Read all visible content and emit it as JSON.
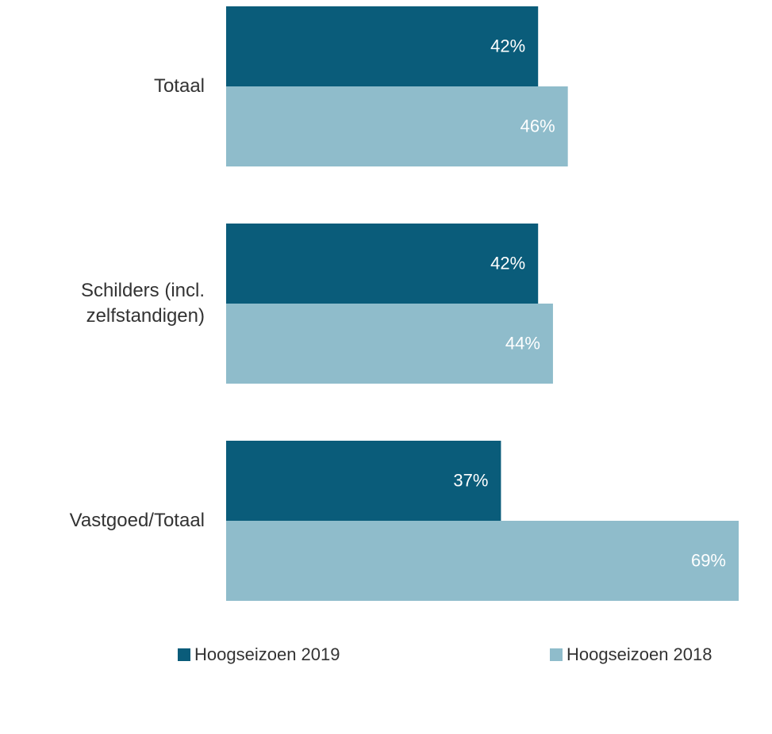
{
  "chart_data": {
    "type": "bar",
    "orientation": "horizontal",
    "categories": [
      "Totaal",
      "Schilders (incl. zelfstandigen)",
      "Vastgoed/Totaal"
    ],
    "series": [
      {
        "name": "Hoogseizoen 2019",
        "color": "#0a5c7a",
        "values": [
          42,
          42,
          37
        ],
        "value_labels": [
          "42%",
          "42%",
          "37%"
        ]
      },
      {
        "name": "Hoogseizoen 2018",
        "color": "#8fbccb",
        "values": [
          46,
          44,
          69
        ],
        "value_labels": [
          "46%",
          "44%",
          "69%"
        ]
      }
    ],
    "xlim": [
      0,
      69
    ],
    "legend": "bottom"
  }
}
